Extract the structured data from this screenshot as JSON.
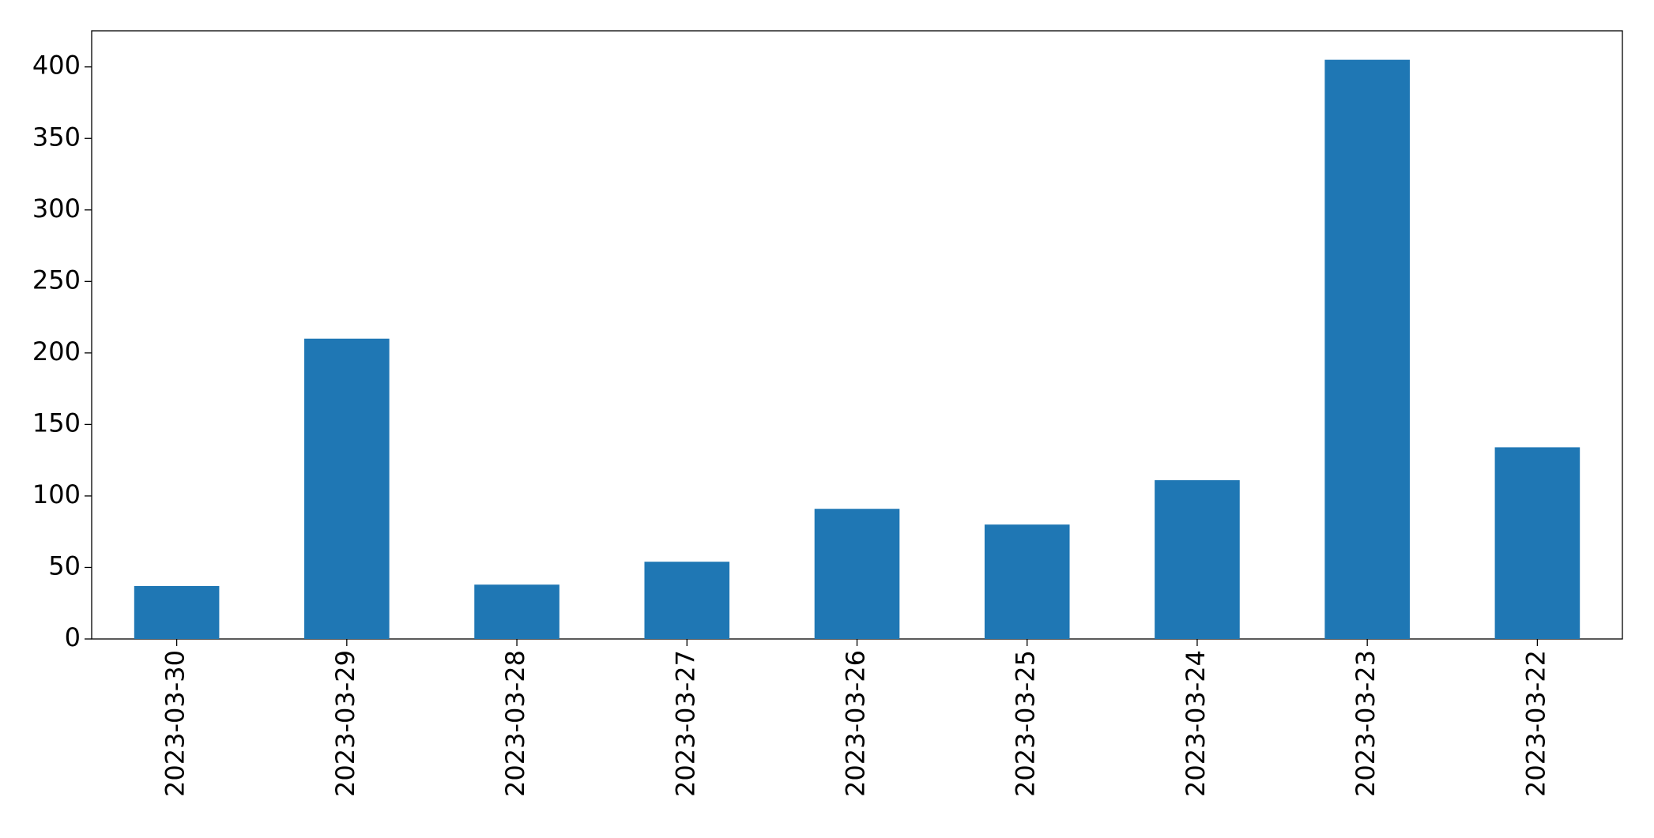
{
  "chart_data": {
    "type": "bar",
    "categories": [
      "2023-03-30",
      "2023-03-29",
      "2023-03-28",
      "2023-03-27",
      "2023-03-26",
      "2023-03-25",
      "2023-03-24",
      "2023-03-23",
      "2023-03-22"
    ],
    "values": [
      37,
      210,
      38,
      54,
      91,
      80,
      111,
      405,
      134
    ],
    "color": "#1f77b4",
    "ylim": [
      0,
      425.25
    ],
    "yticks": [
      0,
      50,
      100,
      150,
      200,
      250,
      300,
      350,
      400
    ],
    "grid": false
  }
}
